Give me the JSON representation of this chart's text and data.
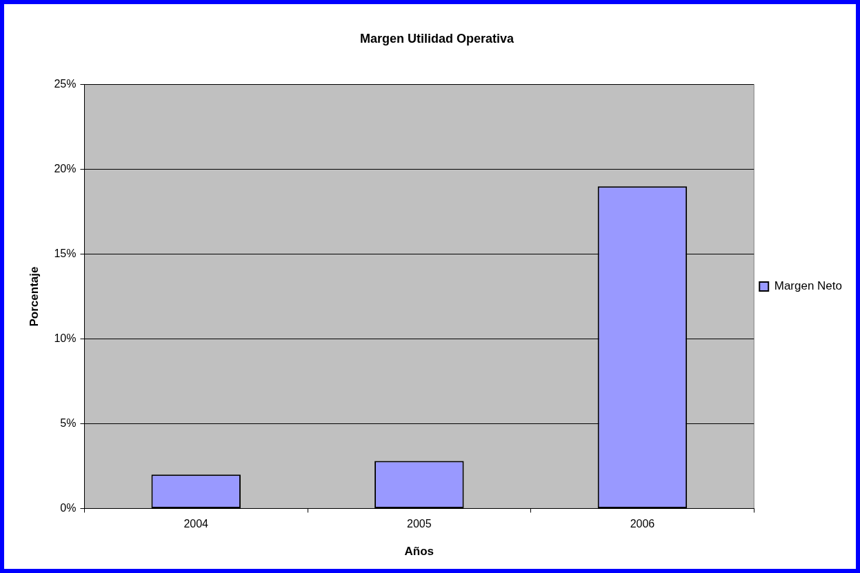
{
  "chart_data": {
    "type": "bar",
    "title": "Margen Utilidad Operativa",
    "xlabel": "Años",
    "ylabel": "Porcentaje",
    "categories": [
      "2004",
      "2005",
      "2006"
    ],
    "series": [
      {
        "name": "Margen Neto",
        "color": "#9999ff",
        "values": [
          2.0,
          2.8,
          19.0
        ]
      }
    ],
    "ylim": [
      0,
      25
    ],
    "yticks": [
      {
        "value": 0,
        "label": "0%"
      },
      {
        "value": 5,
        "label": "5%"
      },
      {
        "value": 10,
        "label": "10%"
      },
      {
        "value": 15,
        "label": "15%"
      },
      {
        "value": 20,
        "label": "20%"
      },
      {
        "value": 25,
        "label": "25%"
      }
    ],
    "grid": "y",
    "legend": "right"
  }
}
